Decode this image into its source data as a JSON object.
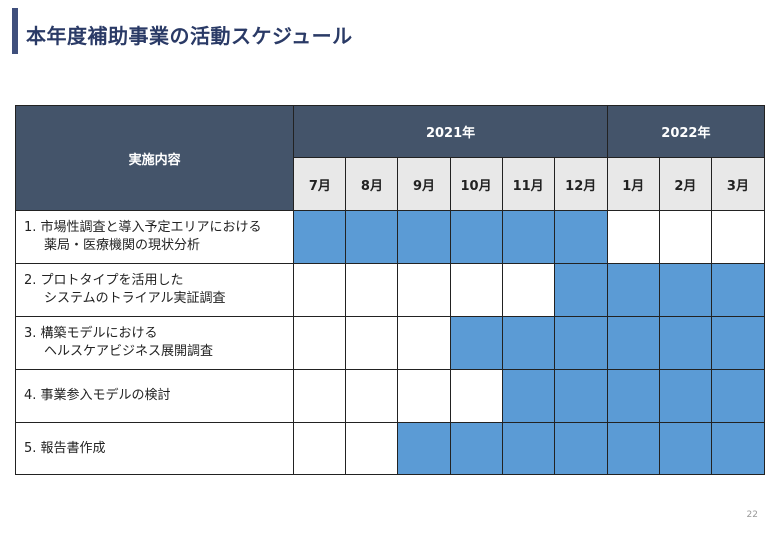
{
  "title": "本年度補助事業の活動スケジュール",
  "header": {
    "content_label": "実施内容",
    "years": [
      {
        "label": "2021年",
        "span": 6
      },
      {
        "label": "2022年",
        "span": 3
      }
    ],
    "months": [
      "7月",
      "8月",
      "9月",
      "10月",
      "11月",
      "12月",
      "1月",
      "2月",
      "3月"
    ]
  },
  "tasks": [
    {
      "line1": "1. 市場性調査と導入予定エリアにおける",
      "line2": "薬局・医療機関の現状分析",
      "active": [
        1,
        1,
        1,
        1,
        1,
        1,
        0,
        0,
        0
      ]
    },
    {
      "line1": "2. プロトタイプを活用した",
      "line2": "システムのトライアル実証調査",
      "active": [
        0,
        0,
        0,
        0,
        0,
        1,
        1,
        1,
        1
      ]
    },
    {
      "line1": "3. 構築モデルにおける",
      "line2": "ヘルスケアビジネス展開調査",
      "active": [
        0,
        0,
        0,
        1,
        1,
        1,
        1,
        1,
        1
      ]
    },
    {
      "line1": "4. 事業参入モデルの検討",
      "line2": "",
      "active": [
        0,
        0,
        0,
        0,
        1,
        1,
        1,
        1,
        1
      ]
    },
    {
      "line1": "5. 報告書作成",
      "line2": "",
      "active": [
        0,
        0,
        1,
        1,
        1,
        1,
        1,
        1,
        1
      ]
    }
  ],
  "colors": {
    "header": "#44546a",
    "bar": "#5b9bd5",
    "month_bg": "#e8e8e8",
    "title": "#2a3a66"
  },
  "page_number": "22"
}
